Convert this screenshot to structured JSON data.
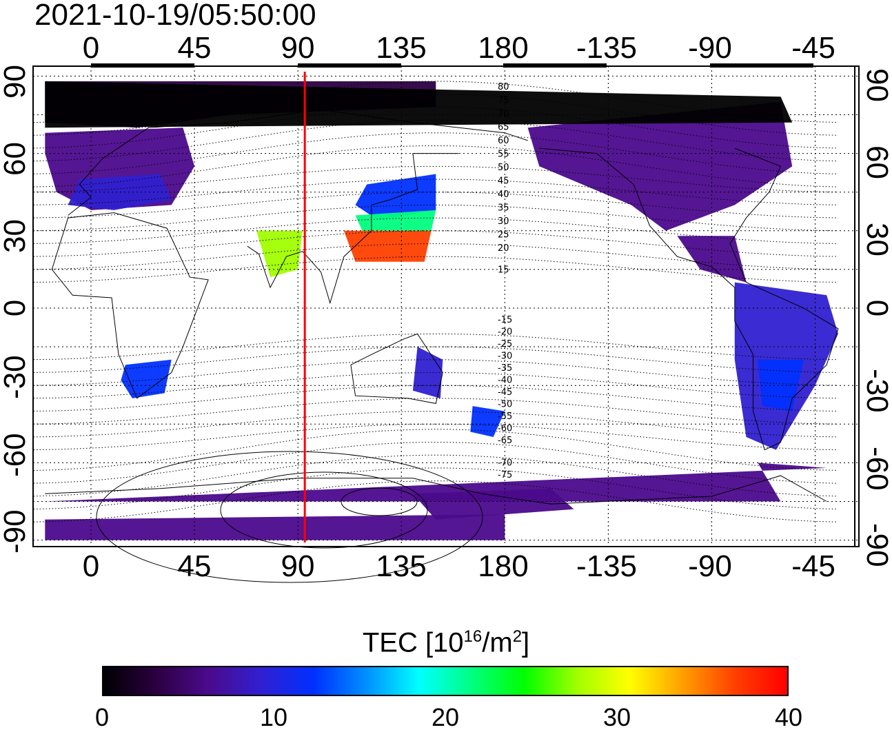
{
  "timestamp": "2021-10-19/05:50:00",
  "x_ticks": [
    "0",
    "45",
    "90",
    "135",
    "180",
    "-135",
    "-90",
    "-45"
  ],
  "y_ticks_left": [
    "90",
    "60",
    "30",
    "0",
    "-30",
    "-60",
    "-90"
  ],
  "y_ticks_right": [
    "90",
    "60",
    "30",
    "0",
    "-30",
    "-60",
    "-90"
  ],
  "colorbar": {
    "title_prefix": "TEC  [10",
    "title_sup1": "16",
    "title_mid": "/m",
    "title_sup2": "2",
    "title_suffix": "]",
    "ticks": [
      "0",
      "10",
      "20",
      "30",
      "40"
    ],
    "min": 0,
    "max": 40
  },
  "meridian_marker": {
    "longitude": 93,
    "color": "#ff0000"
  },
  "mlat_labels_north": [
    "80",
    "75",
    "70",
    "65",
    "60",
    "55",
    "50",
    "45",
    "40",
    "35",
    "30",
    "25",
    "20",
    "15"
  ],
  "mlat_labels_south": [
    "-15",
    "-20",
    "-25",
    "-30",
    "-35",
    "-40",
    "-45",
    "-50",
    "-55",
    "-60",
    "-65",
    "-70",
    "-75"
  ],
  "colors": {
    "scale": [
      "#000000",
      "#2b0040",
      "#4b0a8c",
      "#3020d0",
      "#0030ff",
      "#0090ff",
      "#00ffff",
      "#00ff80",
      "#00ff00",
      "#a0ff00",
      "#ffff00",
      "#ffa000",
      "#ff4000",
      "#ff0000"
    ]
  }
}
